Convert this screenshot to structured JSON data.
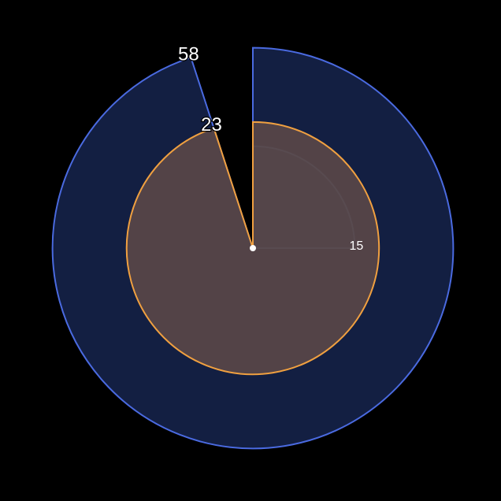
{
  "chart_data": {
    "type": "polar-area",
    "title": "",
    "series": [
      {
        "value": 15,
        "label": "15",
        "percent": 25,
        "fill": "#1b2b30",
        "stroke": "#88cce0"
      },
      {
        "value": 58,
        "label": "58",
        "percent": 95,
        "fill": "#16244d",
        "stroke": "#4a6ae0"
      },
      {
        "value": 23,
        "label": "23",
        "percent": 95,
        "fill": "#6a5049",
        "stroke": "#f0a040"
      }
    ],
    "start_angle_deg": 0,
    "direction": "clockwise",
    "grid": false,
    "legend": "none",
    "colors": {
      "background": "#000000",
      "center_dot": "#ffffff",
      "label_text": "#ffffff"
    }
  }
}
